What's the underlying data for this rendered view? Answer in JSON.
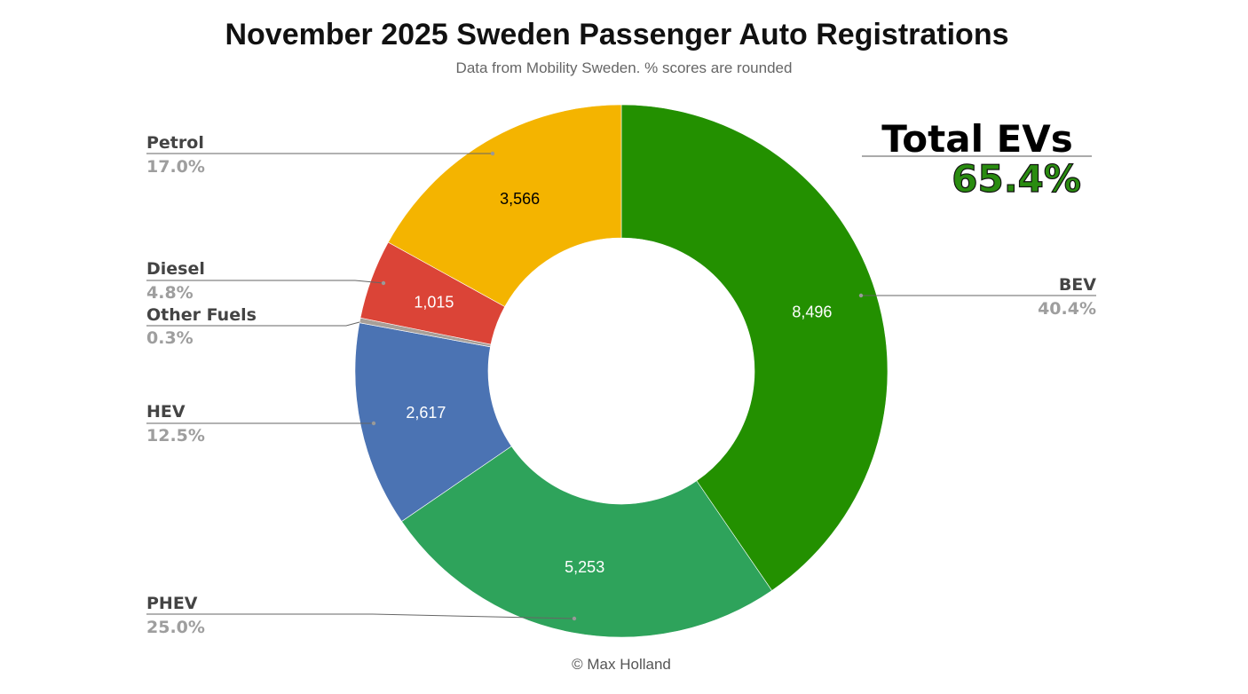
{
  "chart_data": {
    "type": "pie",
    "style": "donut",
    "title": "November 2025 Sweden Passenger Auto Registrations",
    "subtitle": "Data from Mobility Sweden. % scores are rounded",
    "credit": "© Max Holland",
    "slices": [
      {
        "name": "BEV",
        "value": 8496,
        "value_label": "8,496",
        "percent_label": "40.4%",
        "color": "#239000",
        "label_color": "#ffffff"
      },
      {
        "name": "PHEV",
        "value": 5253,
        "value_label": "5,253",
        "percent_label": "25.0%",
        "color": "#2ea35b",
        "label_color": "#ffffff"
      },
      {
        "name": "HEV",
        "value": 2617,
        "value_label": "2,617",
        "percent_label": "12.5%",
        "color": "#4b73b3",
        "label_color": "#ffffff"
      },
      {
        "name": "Other Fuels",
        "value": 63,
        "percent_label": "0.3%",
        "color": "#a89f98"
      },
      {
        "name": "Diesel",
        "value": 1015,
        "value_label": "1,015",
        "percent_label": "4.8%",
        "color": "#db4437",
        "label_color": "#ffffff"
      },
      {
        "name": "Petrol",
        "value": 3566,
        "value_label": "3,566",
        "percent_label": "17.0%",
        "color": "#f4b400",
        "label_color": "#000000"
      }
    ],
    "annotation": {
      "title": "Total EVs",
      "value": "65.4%",
      "color": "#2a8c10"
    },
    "legend": "none"
  }
}
